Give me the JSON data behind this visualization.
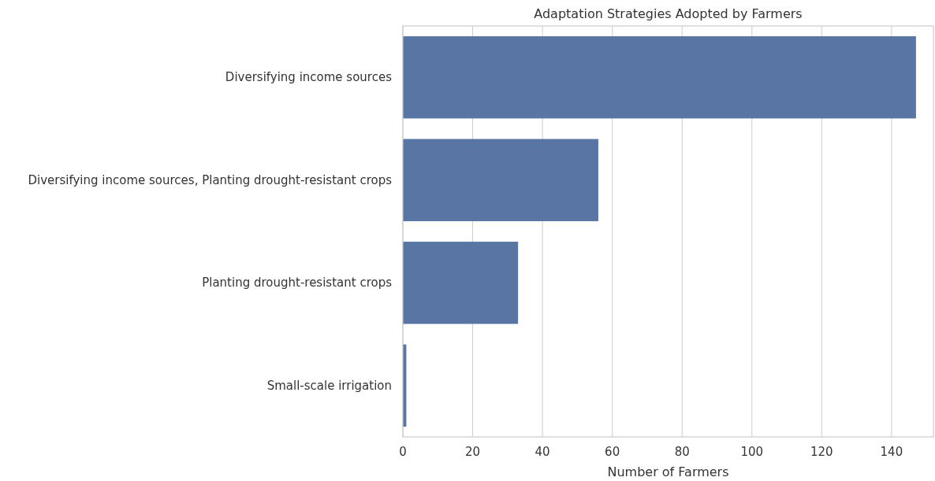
{
  "chart_data": {
    "type": "bar",
    "orientation": "horizontal",
    "title": "Adaptation Strategies Adopted by Farmers",
    "xlabel": "Number of Farmers",
    "categories": [
      "Diversifying income sources",
      "Diversifying income sources, Planting drought-resistant crops",
      "Planting drought-resistant crops",
      "Small-scale irrigation"
    ],
    "values": [
      147,
      56,
      33,
      1
    ],
    "color": "#5975a4",
    "xlim": [
      0,
      152
    ],
    "xticks": [
      0,
      20,
      40,
      60,
      80,
      100,
      120,
      140
    ],
    "grid": "x"
  }
}
